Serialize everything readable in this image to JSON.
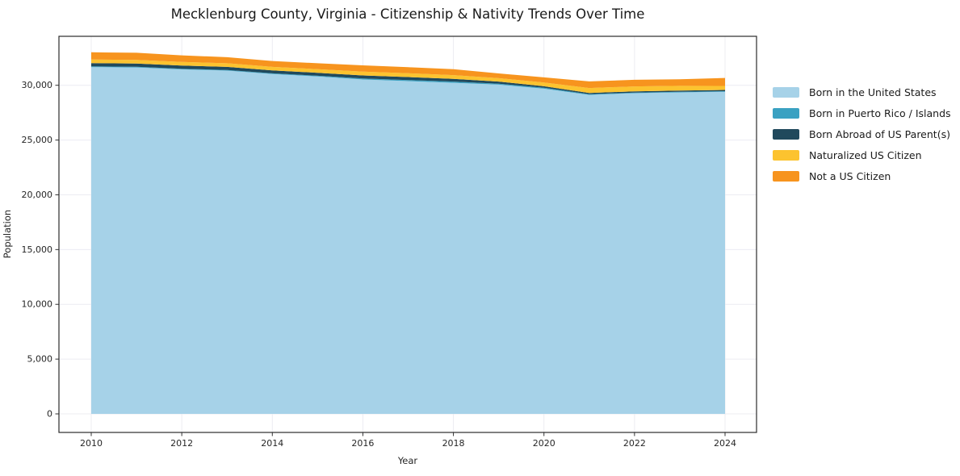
{
  "title": "Mecklenburg County, Virginia - Citizenship & Nativity Trends Over Time",
  "chart_data": {
    "type": "area",
    "stacked": true,
    "title": "Mecklenburg County, Virginia - Citizenship & Nativity Trends Over Time",
    "xlabel": "Year",
    "ylabel": "Population",
    "grid": true,
    "legend_position": "right-outside",
    "xlim": [
      2009.3,
      2024.7
    ],
    "ylim": [
      -1700,
      34500
    ],
    "x": [
      2010,
      2011,
      2012,
      2013,
      2014,
      2015,
      2016,
      2017,
      2018,
      2019,
      2020,
      2021,
      2022,
      2023,
      2024
    ],
    "x_ticks": {
      "values": [
        2010,
        2012,
        2014,
        2016,
        2018,
        2020,
        2022,
        2024
      ],
      "labels": [
        "2010",
        "2012",
        "2014",
        "2016",
        "2018",
        "2020",
        "2022",
        "2024"
      ]
    },
    "y_ticks": {
      "values": [
        0,
        5000,
        10000,
        15000,
        20000,
        25000,
        30000
      ],
      "labels": [
        "0",
        "5,000",
        "10,000",
        "15,000",
        "20,000",
        "25,000",
        "30,000"
      ]
    },
    "series": [
      {
        "name": "Born in the United States",
        "color": "#A6D2E8",
        "values": [
          31660,
          31630,
          31450,
          31340,
          31030,
          30800,
          30530,
          30380,
          30230,
          30060,
          29690,
          29120,
          29280,
          29350,
          29400
        ]
      },
      {
        "name": "Born in Puerto Rico / Islands",
        "color": "#3AA1C2",
        "values": [
          60,
          60,
          60,
          60,
          60,
          70,
          90,
          100,
          110,
          90,
          80,
          60,
          60,
          60,
          60
        ]
      },
      {
        "name": "Born Abroad of US Parent(s)",
        "color": "#20495C",
        "values": [
          300,
          300,
          290,
          280,
          270,
          270,
          280,
          270,
          240,
          190,
          140,
          110,
          110,
          110,
          110
        ]
      },
      {
        "name": "Naturalized US Citizen",
        "color": "#FCC32F",
        "values": [
          330,
          330,
          330,
          330,
          320,
          330,
          350,
          350,
          350,
          310,
          350,
          460,
          450,
          430,
          370
        ]
      },
      {
        "name": "Not a US Citizen",
        "color": "#F7941E",
        "values": [
          660,
          650,
          600,
          550,
          540,
          540,
          570,
          550,
          540,
          430,
          460,
          600,
          600,
          600,
          730
        ]
      }
    ],
    "colors": {
      "gridline": "#ECECF2",
      "axis_border": "#2B2B2B",
      "tick": "#333333",
      "tick_label": "#262626",
      "background": "#FFFFFF"
    }
  }
}
